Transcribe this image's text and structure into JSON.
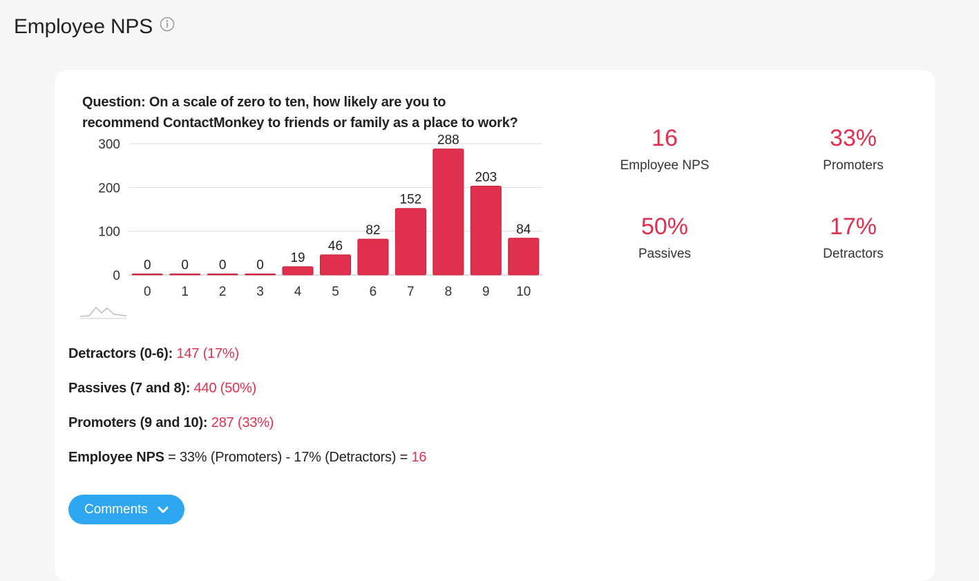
{
  "page": {
    "title": "Employee NPS",
    "info_icon": "info-circle-icon"
  },
  "card": {
    "question": "Question: On a scale of zero to ten, how likely are you to recommend ContactMonkey to friends or family as a place to work?"
  },
  "chart_data": {
    "type": "bar",
    "categories": [
      "0",
      "1",
      "2",
      "3",
      "4",
      "5",
      "6",
      "7",
      "8",
      "9",
      "10"
    ],
    "values": [
      0,
      0,
      0,
      0,
      19,
      46,
      82,
      152,
      288,
      203,
      84
    ],
    "data_labels": [
      "0",
      "0",
      "0",
      "0",
      "19",
      "46",
      "82",
      "152",
      "288",
      "203",
      "84"
    ],
    "yticks": [
      "0",
      "100",
      "200",
      "300"
    ],
    "ylim": [
      0,
      300
    ],
    "grid": true,
    "bar_color": "#e0304f",
    "title": "",
    "xlabel": "",
    "ylabel": ""
  },
  "stats": [
    {
      "value": "16",
      "label": "Employee NPS"
    },
    {
      "value": "33%",
      "label": "Promoters"
    },
    {
      "value": "50%",
      "label": "Passives"
    },
    {
      "value": "17%",
      "label": "Detractors"
    }
  ],
  "summary": {
    "detractors_label": "Detractors (0-6):",
    "detractors_value": "147 (17%)",
    "passives_label": "Passives (7 and 8):",
    "passives_value": "440 (50%)",
    "promoters_label": "Promoters (9 and 10):",
    "promoters_value": "287 (33%)",
    "nps_label": "Employee NPS",
    "nps_formula": " = 33% (Promoters) - 17% (Detractors) = ",
    "nps_value": "16"
  },
  "comments_button": {
    "label": "Comments",
    "icon": "chevron-down-icon"
  },
  "colors": {
    "accent": "#e0304f",
    "button": "#2fa6f0",
    "background": "#f7f7f7"
  }
}
